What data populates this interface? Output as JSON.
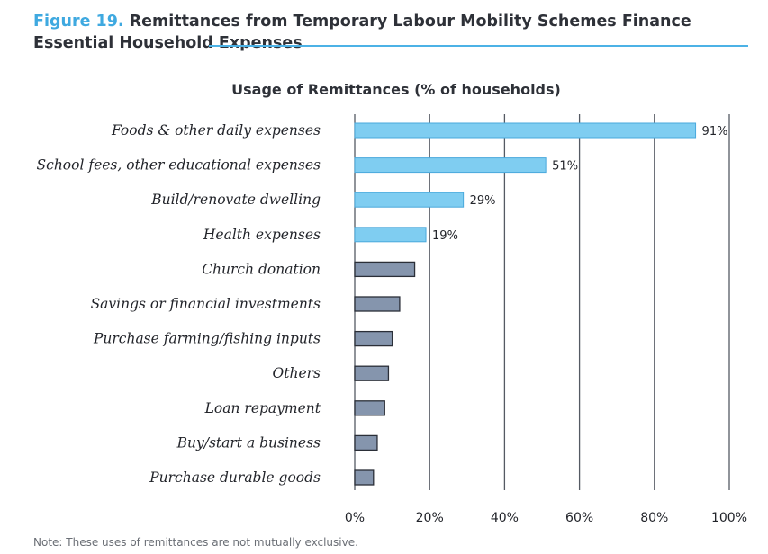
{
  "figure": {
    "number": "Figure 19.",
    "title": "Remittances from Temporary Labour Mobility Schemes Finance Essential Household Expenses"
  },
  "note": "Note: These uses of remittances are not mutually exclusive.",
  "colors": {
    "labeled_bar": "#7fcdf1",
    "labeled_bar_stroke": "#4aa9dc",
    "other_bar": "#8595ad",
    "other_bar_stroke": "#2b2f38",
    "gridline": "#555a63",
    "figure_accent": "#3fa9e0"
  },
  "chart_data": {
    "type": "bar",
    "orientation": "horizontal",
    "title": "Usage of Remittances (% of households)",
    "xlabel": "",
    "ylabel": "",
    "xlim": [
      0,
      100
    ],
    "ticks": [
      "0%",
      "20%",
      "40%",
      "60%",
      "80%",
      "100%"
    ],
    "grid": true,
    "categories": [
      "Foods & other daily expenses",
      "School fees, other educational expenses",
      "Build/renovate dwelling",
      "Health expenses",
      "Church donation",
      "Savings or financial investments",
      "Purchase farming/fishing inputs",
      "Others",
      "Loan repayment",
      "Buy/start a business",
      "Purchase durable goods"
    ],
    "values": [
      91,
      51,
      29,
      19,
      16,
      12,
      10,
      9,
      8,
      6,
      5
    ],
    "data_labels": [
      "91%",
      "51%",
      "29%",
      "19%",
      "",
      "",
      "",
      "",
      "",
      "",
      ""
    ]
  }
}
